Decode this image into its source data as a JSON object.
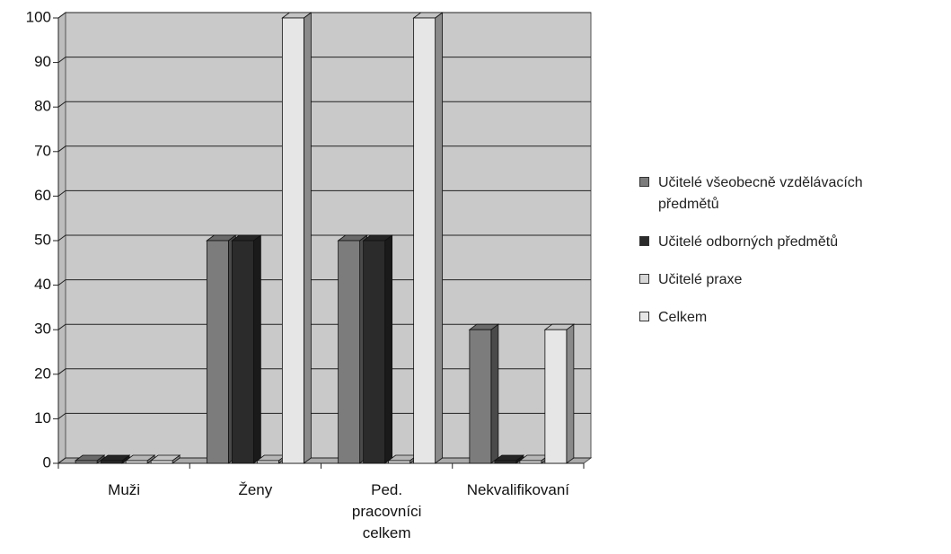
{
  "chart_data": {
    "type": "bar",
    "categories": [
      "Muži",
      "Ženy",
      "Ped. pracovníci celkem",
      "Nekvalifikovaní"
    ],
    "series": [
      {
        "name": "Učitelé všeobecně vzdělávacích předmětů",
        "color": "#7c7c7c",
        "values": [
          0,
          50,
          50,
          30
        ]
      },
      {
        "name": "Učitelé odborných předmětů",
        "color": "#2b2b2b",
        "values": [
          0,
          50,
          50,
          0
        ]
      },
      {
        "name": "Učitelé praxe",
        "color": "#d6d6d6",
        "values": [
          0,
          0,
          0,
          0
        ]
      },
      {
        "name": "Celkem",
        "color": "#e6e6e6",
        "values": [
          0,
          100,
          100,
          30
        ]
      }
    ],
    "ylim": [
      0,
      100
    ],
    "yticks": [
      0,
      10,
      20,
      30,
      40,
      50,
      60,
      70,
      80,
      90,
      100
    ],
    "grid": true
  }
}
